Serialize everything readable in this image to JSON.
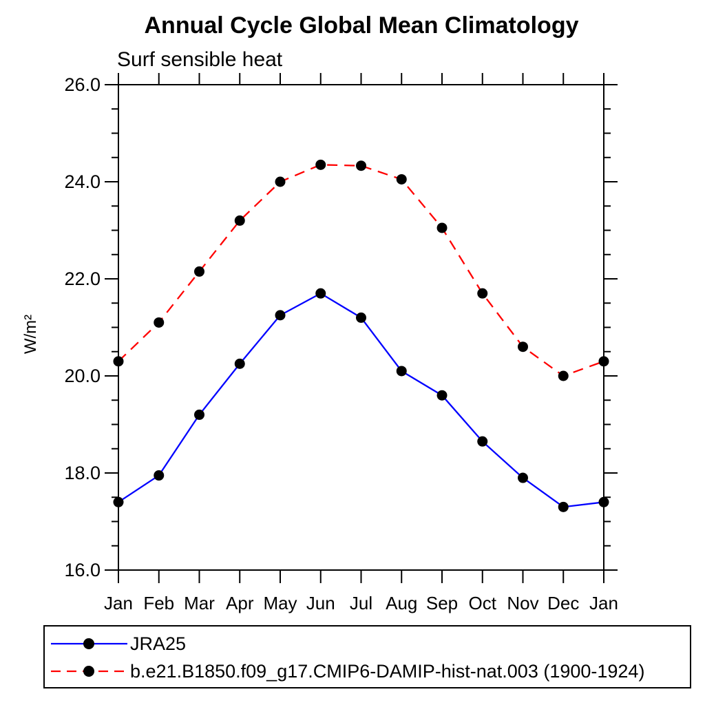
{
  "chart_data": {
    "type": "line",
    "title": "Annual Cycle Global Mean Climatology",
    "subtitle": "Surf sensible heat",
    "ylabel": "W/m²",
    "xlabel": "",
    "categories": [
      "Jan",
      "Feb",
      "Mar",
      "Apr",
      "May",
      "Jun",
      "Jul",
      "Aug",
      "Sep",
      "Oct",
      "Nov",
      "Dec",
      "Jan"
    ],
    "ylim": [
      16.0,
      26.0
    ],
    "ymajor_step": 2.0,
    "yminor_step": 0.5,
    "ytick_labels": [
      "16.0",
      "18.0",
      "20.0",
      "22.0",
      "24.0",
      "26.0"
    ],
    "grid": "off",
    "legend_position": "bottom-left-box",
    "axis_color": "#000000",
    "marker_color": "#000000",
    "series": [
      {
        "name": "JRA25",
        "color": "#0000ff",
        "line_style": "solid",
        "marker": "filled-circle",
        "values": [
          17.4,
          17.95,
          19.2,
          20.25,
          21.25,
          21.7,
          21.2,
          20.1,
          19.6,
          18.65,
          17.9,
          17.3,
          17.4
        ]
      },
      {
        "name": "b.e21.B1850.f09_g17.CMIP6-DAMIP-hist-nat.003 (1900-1924)",
        "color": "#ff0000",
        "line_style": "dashed",
        "marker": "filled-circle",
        "values": [
          20.3,
          21.1,
          22.15,
          23.2,
          24.0,
          24.35,
          24.33,
          24.05,
          23.05,
          21.7,
          20.6,
          20.0,
          20.3
        ]
      }
    ]
  }
}
